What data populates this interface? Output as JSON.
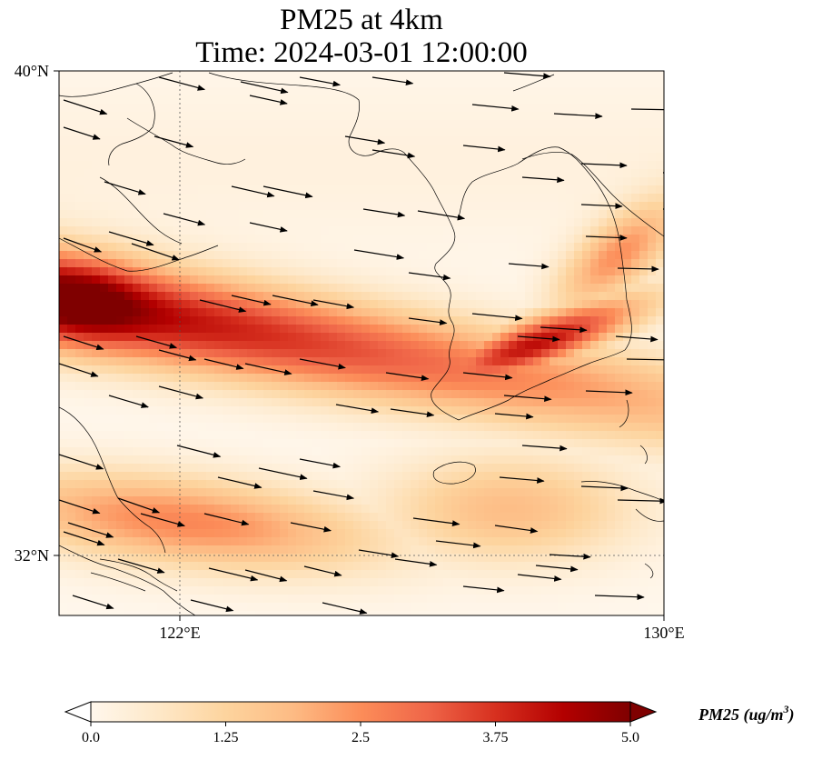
{
  "title_line1": "PM25 at 4km",
  "title_line2": "Time: 2024-03-01 12:00:00",
  "map": {
    "lon_range": [
      119,
      134
    ],
    "lat_range": [
      31,
      40
    ],
    "lat_ticks": [
      {
        "value": 40,
        "label": "40°N"
      },
      {
        "value": 32,
        "label": "32°N"
      }
    ],
    "lon_ticks": [
      {
        "value": 122,
        "label": "122°E"
      },
      {
        "value": 130,
        "label": "130°E"
      }
    ],
    "gridlines": {
      "lon": [
        122
      ],
      "lat": [
        32
      ],
      "style": "dotted"
    },
    "coastline_color": "#000000",
    "arrow_color": "#000000"
  },
  "field": {
    "variable": "PM25",
    "units": "ug/m^3",
    "high_band_note": "values 0–5 shown in OrRd"
  },
  "colorbar": {
    "title": "PM25 (ug/m$^3$)",
    "title_display": "PM25 (ug/m",
    "title_sup": "3",
    "title_close": ")",
    "min": 0.0,
    "max": 5.0,
    "ticks": [
      {
        "value": 0.0,
        "label": "0.0"
      },
      {
        "value": 1.25,
        "label": "1.25"
      },
      {
        "value": 2.5,
        "label": "2.5"
      },
      {
        "value": 3.75,
        "label": "3.75"
      },
      {
        "value": 5.0,
        "label": "5.0"
      }
    ],
    "colormap": [
      "#fff7ec",
      "#fee8c8",
      "#fdd49e",
      "#fdbb84",
      "#fc8d59",
      "#ef6548",
      "#d7301f",
      "#b30000",
      "#7f0000"
    ],
    "extend": "both"
  }
}
